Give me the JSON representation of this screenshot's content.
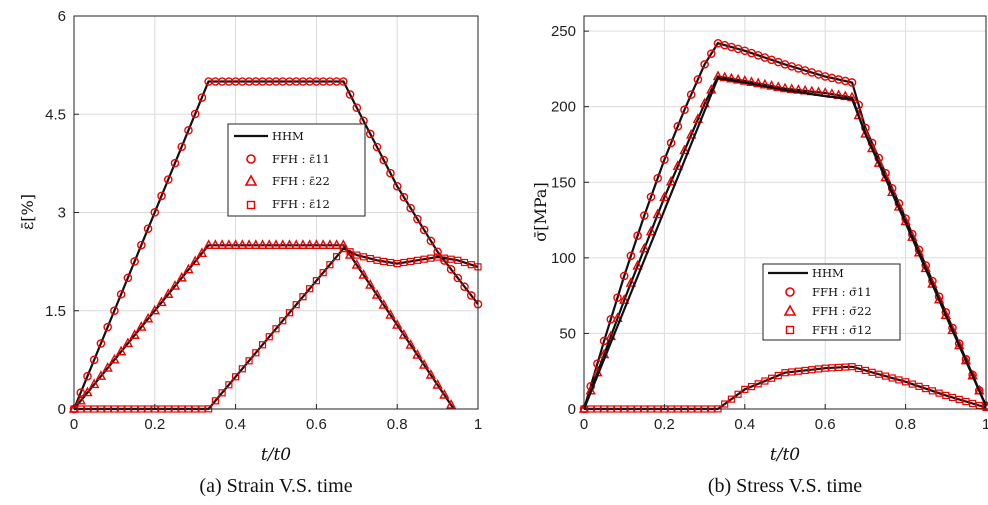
{
  "chart_data": [
    {
      "type": "line",
      "caption": "(a) Strain V.S. time",
      "xlabel": "t/t0",
      "ylabel": "ε̄[%]",
      "xlim": [
        0,
        1
      ],
      "ylim": [
        0,
        6
      ],
      "xticks": [
        "0",
        "0.2",
        "0.4",
        "0.6",
        "0.8",
        "1"
      ],
      "yticks": [
        "0",
        "1.5",
        "3",
        "4.5",
        "6"
      ],
      "grid": true,
      "legend_position": "center",
      "legend": [
        "HHM",
        "FFH : ε̄11",
        "FFH : ε̄22",
        "FFH : ε̄12"
      ],
      "series": [
        {
          "name": "ε̄11",
          "marker": "circle",
          "x": [
            0,
            0.333,
            0.667,
            0.7,
            0.75,
            0.8,
            0.85,
            0.9,
            0.95,
            1.0
          ],
          "y": [
            0,
            5.0,
            5.0,
            4.6,
            4.0,
            3.4,
            2.9,
            2.4,
            2.0,
            1.6
          ]
        },
        {
          "name": "ε̄22",
          "marker": "triangle",
          "x": [
            0,
            0.333,
            0.667,
            0.94
          ],
          "y": [
            0,
            2.5,
            2.5,
            0
          ]
        },
        {
          "name": "ε̄12",
          "marker": "square",
          "x": [
            0,
            0.333,
            0.667,
            0.7,
            0.75,
            0.8,
            0.85,
            0.9,
            0.95,
            1.0
          ],
          "y": [
            0,
            0,
            2.45,
            2.35,
            2.27,
            2.22,
            2.27,
            2.32,
            2.27,
            2.17
          ]
        }
      ]
    },
    {
      "type": "line",
      "caption": "(b) Stress V.S. time",
      "xlabel": "t/t0",
      "ylabel": "σ̄[MPa]",
      "xlim": [
        0,
        1
      ],
      "ylim": [
        0,
        260
      ],
      "xticks": [
        "0",
        "0.2",
        "0.4",
        "0.6",
        "0.8",
        "1"
      ],
      "yticks": [
        "0",
        "50",
        "100",
        "150",
        "200",
        "250"
      ],
      "grid": true,
      "legend_position": "lower-right",
      "legend": [
        "HHM",
        "FFH : σ̄11",
        "FFH : σ̄22",
        "FFH : σ̄12"
      ],
      "series": [
        {
          "name": "σ̄11",
          "marker": "circle",
          "x": [
            0,
            0.05,
            0.1,
            0.15,
            0.2,
            0.25,
            0.3,
            0.333,
            0.4,
            0.5,
            0.6,
            0.667,
            0.7,
            0.8,
            0.9,
            1.0
          ],
          "y": [
            0,
            45,
            88,
            128,
            165,
            198,
            228,
            242,
            237,
            228,
            220,
            216,
            186,
            126,
            64,
            2
          ]
        },
        {
          "name": "σ̄22",
          "marker": "triangle",
          "x": [
            0,
            0.1,
            0.2,
            0.3,
            0.333,
            0.4,
            0.5,
            0.6,
            0.667,
            0.7,
            0.8,
            0.9,
            1.0
          ],
          "y": [
            0,
            72,
            140,
            202,
            220,
            217,
            212,
            209,
            206,
            182,
            124,
            62,
            2
          ]
        },
        {
          "name": "σ̄12",
          "marker": "square",
          "x": [
            0,
            0.333,
            0.4,
            0.5,
            0.6,
            0.667,
            0.8,
            0.9,
            1.0
          ],
          "y": [
            0,
            0,
            13,
            24,
            27,
            28,
            18,
            9,
            1
          ]
        },
        {
          "name": "HHM σ̄11/σ̄22",
          "marker": "none",
          "x": [
            0,
            0.333,
            0.4,
            0.5,
            0.6,
            0.667,
            0.7,
            0.8,
            0.9,
            1.0
          ],
          "y": [
            0,
            219,
            216,
            211,
            207,
            205,
            182,
            123,
            62,
            2
          ]
        }
      ]
    }
  ]
}
